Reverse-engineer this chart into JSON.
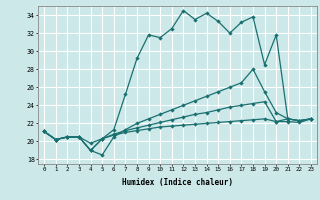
{
  "xlabel": "Humidex (Indice chaleur)",
  "bg_color": "#cce8e8",
  "grid_color": "#ffffff",
  "line_color": "#1a7070",
  "xlim": [
    -0.5,
    23.5
  ],
  "ylim": [
    17.5,
    35.0
  ],
  "xticks": [
    0,
    1,
    2,
    3,
    4,
    5,
    6,
    7,
    8,
    9,
    10,
    11,
    12,
    13,
    14,
    15,
    16,
    17,
    18,
    19,
    20,
    21,
    22,
    23
  ],
  "yticks": [
    18,
    20,
    22,
    24,
    26,
    28,
    30,
    32,
    34
  ],
  "line1_x": [
    0,
    1,
    2,
    3,
    4,
    5,
    6,
    7,
    8,
    9,
    10,
    11,
    12,
    13,
    14,
    15,
    16,
    17,
    18,
    19,
    20,
    21,
    22,
    23
  ],
  "line1_y": [
    21.1,
    20.2,
    20.5,
    20.5,
    19.8,
    20.3,
    21.3,
    25.2,
    29.2,
    31.8,
    31.5,
    32.5,
    34.5,
    33.5,
    34.2,
    33.3,
    32.0,
    33.2,
    33.8,
    28.5,
    31.8,
    22.5,
    22.3,
    22.5
  ],
  "line2_x": [
    0,
    1,
    2,
    3,
    4,
    5,
    6,
    7,
    8,
    9,
    10,
    11,
    12,
    13,
    14,
    15,
    16,
    17,
    18,
    19,
    20,
    21,
    22,
    23
  ],
  "line2_y": [
    21.1,
    20.2,
    20.5,
    20.5,
    19.0,
    18.5,
    20.5,
    21.3,
    22.0,
    22.5,
    23.0,
    23.5,
    24.0,
    24.5,
    25.0,
    25.5,
    26.0,
    26.5,
    28.0,
    25.5,
    23.2,
    22.5,
    22.3,
    22.5
  ],
  "line3_x": [
    0,
    1,
    2,
    3,
    4,
    5,
    6,
    7,
    8,
    9,
    10,
    11,
    12,
    13,
    14,
    15,
    16,
    17,
    18,
    19,
    20,
    21,
    22,
    23
  ],
  "line3_y": [
    21.1,
    20.2,
    20.5,
    20.5,
    19.0,
    20.3,
    20.8,
    21.2,
    21.5,
    21.8,
    22.1,
    22.4,
    22.7,
    23.0,
    23.2,
    23.5,
    23.8,
    24.0,
    24.2,
    24.4,
    22.2,
    22.5,
    22.3,
    22.5
  ],
  "line4_x": [
    0,
    1,
    2,
    3,
    4,
    5,
    6,
    7,
    8,
    9,
    10,
    11,
    12,
    13,
    14,
    15,
    16,
    17,
    18,
    19,
    20,
    21,
    22,
    23
  ],
  "line4_y": [
    21.1,
    20.2,
    20.5,
    20.5,
    19.0,
    20.3,
    20.7,
    21.0,
    21.2,
    21.4,
    21.6,
    21.7,
    21.8,
    21.9,
    22.0,
    22.1,
    22.2,
    22.3,
    22.4,
    22.5,
    22.2,
    22.2,
    22.1,
    22.5
  ]
}
